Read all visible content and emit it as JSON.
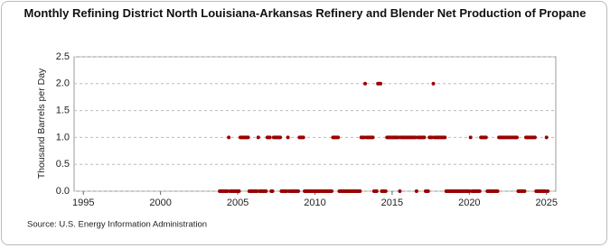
{
  "chart_data": {
    "type": "scatter",
    "title": "Monthly Refining District North Louisiana-Arkansas Refinery and Blender Net Production of Propane",
    "y_label": "Thousand Barrels per Day",
    "source": "Source: U.S. Energy Information Administration",
    "color": "#990000",
    "grid": true,
    "xlim": [
      1994.4,
      2025.6
    ],
    "xticks": [
      1995,
      2000,
      2005,
      2010,
      2015,
      2020,
      2025
    ],
    "ylim": [
      0,
      2.5
    ],
    "yticks": [
      {
        "value": 0,
        "label": "0.0"
      },
      {
        "value": 0.5,
        "label": "0.5"
      },
      {
        "value": 1,
        "label": "1.0"
      },
      {
        "value": 1.5,
        "label": "1.5"
      },
      {
        "value": 2,
        "label": "2.0"
      },
      {
        "value": 2.5,
        "label": "2.5"
      }
    ],
    "x": [
      2003.83,
      2003.92,
      2004,
      2004.08,
      2004.17,
      2004.25,
      2004.33,
      2004.42,
      2004.5,
      2004.58,
      2004.67,
      2004.75,
      2004.83,
      2004.92,
      2005,
      2005.08,
      2005.17,
      2005.25,
      2005.33,
      2005.42,
      2005.5,
      2005.58,
      2005.67,
      2005.75,
      2005.83,
      2005.92,
      2006,
      2006.08,
      2006.17,
      2006.25,
      2006.33,
      2006.42,
      2006.5,
      2006.58,
      2006.67,
      2006.75,
      2006.83,
      2006.92,
      2007,
      2007.08,
      2007.17,
      2007.25,
      2007.33,
      2007.42,
      2007.5,
      2007.58,
      2007.67,
      2007.75,
      2007.83,
      2007.92,
      2008,
      2008.08,
      2008.17,
      2008.25,
      2008.33,
      2008.42,
      2008.5,
      2008.58,
      2008.67,
      2008.75,
      2008.83,
      2008.92,
      2009,
      2009.08,
      2009.17,
      2009.25,
      2009.33,
      2009.42,
      2009.5,
      2009.58,
      2009.67,
      2009.75,
      2009.83,
      2009.92,
      2010,
      2010.08,
      2010.17,
      2010.25,
      2010.33,
      2010.42,
      2010.5,
      2010.58,
      2010.67,
      2010.75,
      2010.83,
      2010.92,
      2011,
      2011.08,
      2011.17,
      2011.25,
      2011.33,
      2011.42,
      2011.5,
      2011.58,
      2011.67,
      2011.75,
      2011.83,
      2011.92,
      2012,
      2012.08,
      2012.17,
      2012.25,
      2012.33,
      2012.42,
      2012.5,
      2012.58,
      2012.67,
      2012.75,
      2012.83,
      2012.92,
      2013,
      2013.08,
      2013.17,
      2013.25,
      2013.33,
      2013.42,
      2013.5,
      2013.58,
      2013.67,
      2013.75,
      2013.83,
      2013.92,
      2014,
      2014.08,
      2014.17,
      2014.25,
      2014.33,
      2014.42,
      2014.5,
      2014.58,
      2014.67,
      2014.75,
      2014.83,
      2014.92,
      2015,
      2015.08,
      2015.17,
      2015.25,
      2015.33,
      2015.42,
      2015.5,
      2015.58,
      2015.67,
      2015.75,
      2015.83,
      2015.92,
      2016,
      2016.08,
      2016.17,
      2016.25,
      2016.33,
      2016.42,
      2016.5,
      2016.58,
      2016.67,
      2016.75,
      2016.83,
      2016.92,
      2017,
      2017.08,
      2017.17,
      2017.25,
      2017.33,
      2017.42,
      2017.5,
      2017.58,
      2017.67,
      2017.75,
      2017.83,
      2017.92,
      2018,
      2018.08,
      2018.17,
      2018.25,
      2018.33,
      2018.42,
      2018.5,
      2018.58,
      2018.67,
      2018.75,
      2018.83,
      2018.92,
      2019,
      2019.08,
      2019.17,
      2019.25,
      2019.33,
      2019.42,
      2019.5,
      2019.58,
      2019.67,
      2019.75,
      2019.83,
      2019.92,
      2020,
      2020.08,
      2020.17,
      2020.25,
      2020.33,
      2020.42,
      2020.5,
      2020.58,
      2020.67,
      2020.75,
      2020.83,
      2020.92,
      2021,
      2021.08,
      2021.17,
      2021.25,
      2021.33,
      2021.42,
      2021.5,
      2021.58,
      2021.67,
      2021.75,
      2021.83,
      2021.92,
      2022,
      2022.08,
      2022.17,
      2022.25,
      2022.33,
      2022.42,
      2022.5,
      2022.58,
      2022.67,
      2022.75,
      2022.83,
      2022.92,
      2023,
      2023.08,
      2023.17,
      2023.25,
      2023.33,
      2023.42,
      2023.5,
      2023.58,
      2023.67,
      2023.75,
      2023.83,
      2023.92,
      2024,
      2024.08,
      2024.17,
      2024.25,
      2024.33,
      2024.42,
      2024.5,
      2024.58,
      2024.67,
      2024.75,
      2024.83,
      2024.92,
      2025,
      2025.08
    ],
    "values": [
      0,
      0,
      0,
      0,
      0,
      0,
      0,
      1,
      0,
      0,
      0,
      0,
      0,
      0,
      0,
      0,
      1,
      1,
      1,
      1,
      1,
      1,
      1,
      0,
      0,
      0,
      0,
      0,
      0,
      0,
      1,
      0,
      0,
      0,
      0,
      0,
      0,
      1,
      1,
      1,
      0,
      0,
      1,
      1,
      1,
      1,
      1,
      1,
      0,
      0,
      0,
      0,
      0,
      1,
      0,
      0,
      0,
      0,
      0,
      0,
      0,
      0,
      1,
      1,
      1,
      1,
      0,
      0,
      0,
      0,
      0,
      0,
      0,
      0,
      0,
      0,
      0,
      0,
      0,
      0,
      0,
      0,
      0,
      0,
      0,
      0,
      0,
      0,
      1,
      1,
      1,
      1,
      1,
      0,
      0,
      0,
      0,
      0,
      0,
      0,
      0,
      0,
      0,
      0,
      0,
      0,
      0,
      0,
      0,
      0,
      1,
      1,
      1,
      2,
      1,
      1,
      1,
      1,
      1,
      1,
      0,
      0,
      0,
      2,
      2,
      2,
      0,
      0,
      0,
      0,
      1,
      1,
      1,
      1,
      1,
      1,
      1,
      1,
      1,
      1,
      0,
      1,
      1,
      1,
      1,
      1,
      1,
      1,
      1,
      1,
      1,
      1,
      1,
      0,
      1,
      1,
      1,
      1,
      1,
      1,
      0,
      0,
      0,
      1,
      1,
      1,
      2,
      1,
      1,
      1,
      1,
      1,
      1,
      1,
      1,
      1,
      0,
      0,
      0,
      0,
      0,
      0,
      0,
      0,
      0,
      0,
      0,
      0,
      0,
      0,
      0,
      0,
      0,
      0,
      0,
      1,
      0,
      0,
      0,
      0,
      0,
      0,
      0,
      1,
      1,
      1,
      1,
      1,
      0,
      0,
      0,
      0,
      0,
      0,
      0,
      0,
      0,
      1,
      1,
      1,
      1,
      1,
      1,
      1,
      1,
      1,
      1,
      1,
      1,
      1,
      1,
      1,
      0,
      0,
      0,
      0,
      0,
      0,
      1,
      1,
      1,
      1,
      1,
      1,
      1,
      1,
      0,
      0,
      0,
      0,
      0,
      0,
      0,
      0,
      1,
      0
    ]
  }
}
